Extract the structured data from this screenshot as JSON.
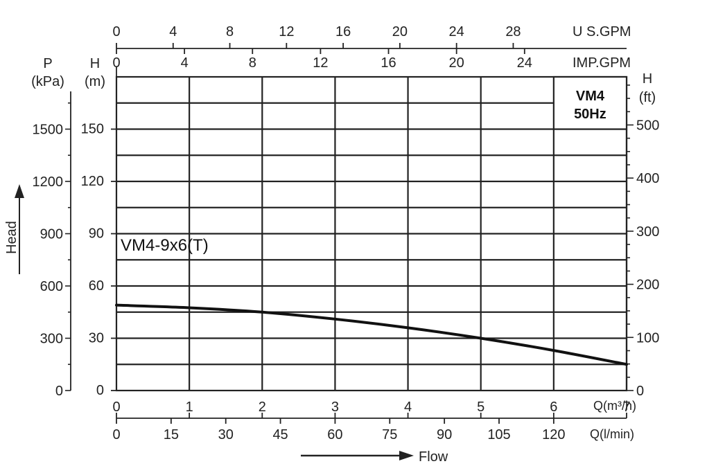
{
  "chart_data": {
    "type": "line",
    "title": "",
    "legend": {
      "model": "VM4",
      "frequency": "50Hz"
    },
    "series": [
      {
        "name": "VM4-9x6(T)",
        "x": [
          0,
          1,
          2,
          3,
          4,
          5,
          6,
          7
        ],
        "y": [
          49,
          47.5,
          45,
          41,
          36,
          30,
          23,
          15
        ]
      }
    ],
    "x_primary": {
      "label": "Q(m³/h)",
      "ticks": [
        0,
        1,
        2,
        3,
        4,
        5,
        6,
        7
      ],
      "range": [
        0,
        7
      ]
    },
    "x_lmin": {
      "label": "Q(l/min)",
      "ticks": [
        0,
        15,
        30,
        45,
        60,
        75,
        90,
        105,
        120
      ]
    },
    "x_usgpm": {
      "label": "U S.GPM",
      "ticks": [
        0,
        4,
        8,
        12,
        16,
        20,
        24,
        28
      ]
    },
    "x_impgpm": {
      "label": "IMP.GPM",
      "ticks": [
        0,
        4,
        8,
        12,
        16,
        20,
        24
      ]
    },
    "y_head_m": {
      "label": "H",
      "unit": "(m)",
      "ticks": [
        0,
        30,
        60,
        90,
        120,
        150
      ],
      "range": [
        0,
        180
      ]
    },
    "y_kpa": {
      "label": "P",
      "unit": "(kPa)",
      "ticks": [
        0,
        300,
        600,
        900,
        1200,
        1500
      ]
    },
    "y_ft": {
      "label": "H",
      "unit": "(ft)",
      "ticks": [
        0,
        100,
        200,
        300,
        400,
        500
      ]
    },
    "head_arrow_label": "Head",
    "flow_arrow_label": "Flow",
    "grid": true
  }
}
